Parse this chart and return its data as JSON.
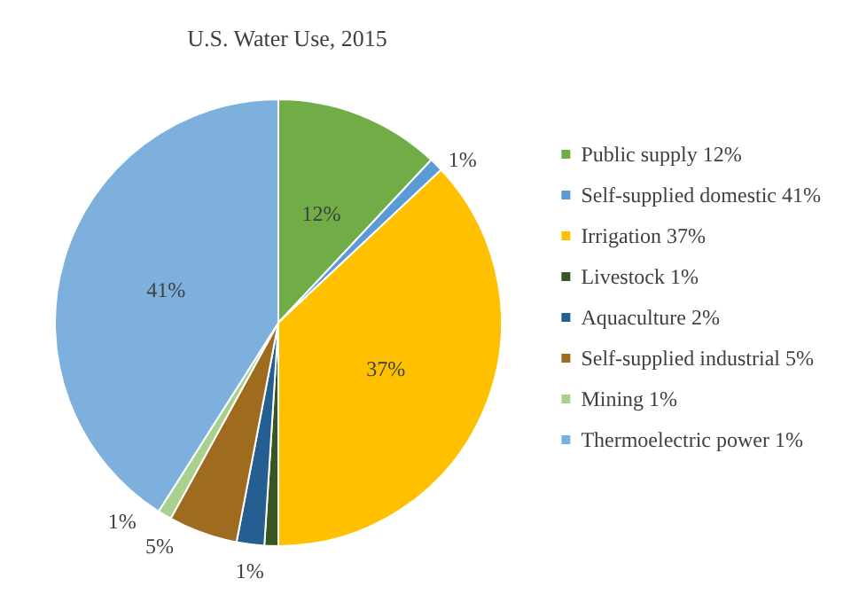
{
  "chart_data": {
    "type": "pie",
    "title": "U.S. Water Use, 2015",
    "categories": [
      "Public supply 12%",
      "Self-supplied domestic 41%",
      "Irrigation 37%",
      "Livestock 1%",
      "Aquaculture 2%",
      "Self-supplied industrial 5%",
      "Mining 1%",
      "Thermoelectric power 1%"
    ],
    "values": [
      12,
      1,
      37,
      1,
      2,
      5,
      1,
      41
    ],
    "colors": [
      "#70ad47",
      "#5b9bd5",
      "#ffc000",
      "#375623",
      "#255e91",
      "#9e6b1f",
      "#a9d18e",
      "#7eb0de"
    ],
    "value_labels": [
      "12%",
      "1%",
      "37%",
      "1%",
      null,
      "5%",
      "1%",
      "41%"
    ],
    "legend": "right"
  }
}
